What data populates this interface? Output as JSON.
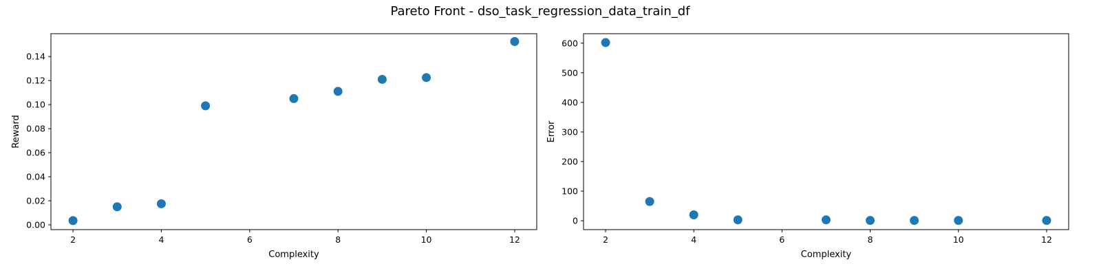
{
  "figure": {
    "suptitle": "Pareto Front - dso_task_regression_data_train_df"
  },
  "chart_data": [
    {
      "type": "scatter",
      "title": "",
      "xlabel": "Complexity",
      "ylabel": "Reward",
      "xlim": [
        1.5,
        12.5
      ],
      "ylim": [
        -0.004,
        0.159
      ],
      "xticks": [
        2,
        4,
        6,
        8,
        10,
        12
      ],
      "xtick_labels": [
        "2",
        "4",
        "6",
        "8",
        "10",
        "12"
      ],
      "yticks": [
        0.0,
        0.02,
        0.04,
        0.06,
        0.08,
        0.1,
        0.12,
        0.14
      ],
      "ytick_labels": [
        "0.00",
        "0.02",
        "0.04",
        "0.06",
        "0.08",
        "0.10",
        "0.12",
        "0.14"
      ],
      "grid": false,
      "color": "#1f77b4",
      "points": [
        {
          "x": 2,
          "y": 0.0035
        },
        {
          "x": 3,
          "y": 0.015
        },
        {
          "x": 4,
          "y": 0.0175
        },
        {
          "x": 5,
          "y": 0.099
        },
        {
          "x": 7,
          "y": 0.105
        },
        {
          "x": 8,
          "y": 0.111
        },
        {
          "x": 9,
          "y": 0.121
        },
        {
          "x": 10,
          "y": 0.1225
        },
        {
          "x": 12,
          "y": 0.1525
        }
      ]
    },
    {
      "type": "scatter",
      "title": "",
      "xlabel": "Complexity",
      "ylabel": "Error",
      "xlim": [
        1.5,
        12.5
      ],
      "ylim": [
        -30,
        632
      ],
      "xticks": [
        2,
        4,
        6,
        8,
        10,
        12
      ],
      "xtick_labels": [
        "2",
        "4",
        "6",
        "8",
        "10",
        "12"
      ],
      "yticks": [
        0,
        100,
        200,
        300,
        400,
        500,
        600
      ],
      "ytick_labels": [
        "0",
        "100",
        "200",
        "300",
        "400",
        "500",
        "600"
      ],
      "grid": false,
      "color": "#1f77b4",
      "points": [
        {
          "x": 2,
          "y": 602
        },
        {
          "x": 3,
          "y": 65
        },
        {
          "x": 4,
          "y": 20
        },
        {
          "x": 5,
          "y": 3
        },
        {
          "x": 7,
          "y": 3
        },
        {
          "x": 8,
          "y": 1
        },
        {
          "x": 9,
          "y": 1
        },
        {
          "x": 10,
          "y": 1
        },
        {
          "x": 12,
          "y": 1
        }
      ]
    }
  ]
}
